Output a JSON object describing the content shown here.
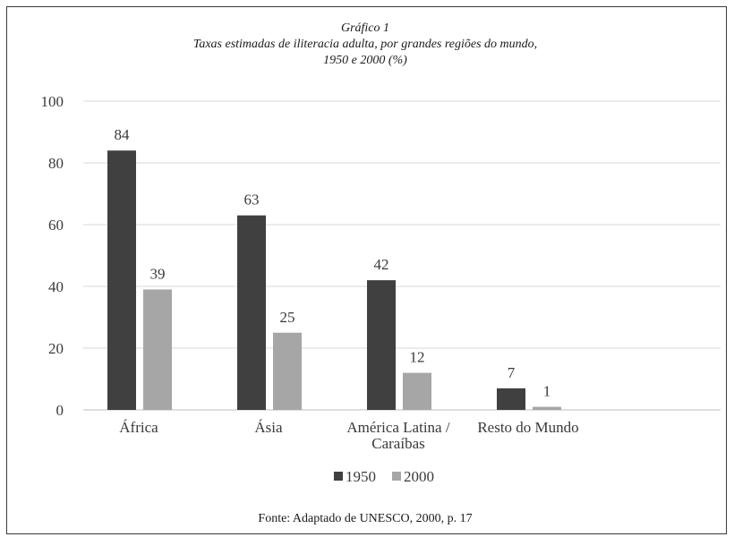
{
  "chart_data": {
    "type": "bar",
    "title": [
      "Gráfico 1",
      "Taxas estimadas de iliteracia adulta, por grandes regiões do mundo,",
      "1950 e 2000 (%)"
    ],
    "categories": [
      [
        "África"
      ],
      [
        "Ásia"
      ],
      [
        "América Latina /",
        "Caraíbas"
      ],
      [
        "Resto do Mundo"
      ]
    ],
    "series": [
      {
        "name": "1950",
        "values": [
          84,
          63,
          42,
          7
        ],
        "color": "#404040"
      },
      {
        "name": "2000",
        "values": [
          39,
          25,
          12,
          1
        ],
        "color": "#a6a6a6"
      }
    ],
    "yticks": [
      "0",
      "20",
      "40",
      "60",
      "80",
      "100"
    ],
    "ylim": [
      0,
      100
    ],
    "grid": true,
    "legend": "bottom-center",
    "data_labels": true,
    "source": "Fonte: Adaptado de UNESCO, 2000, p. 17"
  }
}
